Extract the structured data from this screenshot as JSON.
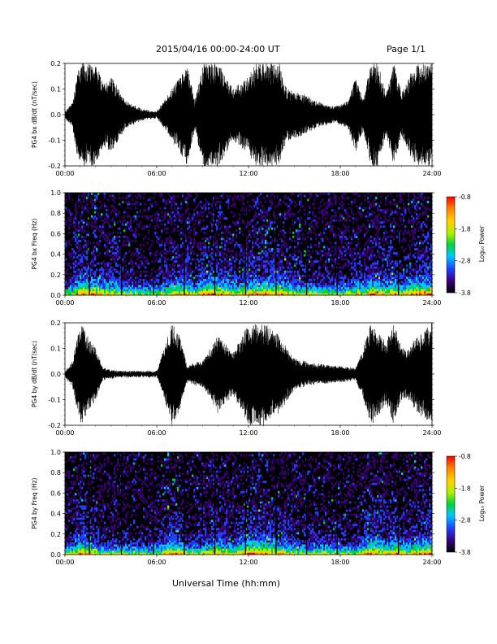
{
  "page": {
    "title": "2015/04/16  00:00-24:00 UT",
    "page_number": "Page 1/1",
    "xaxis_title": "Universal Time (hh:mm)"
  },
  "colors": {
    "trace": "#000000",
    "spectrogram_background": "#000000",
    "colorbar_stops": [
      "#000000",
      "#3a0078",
      "#2040ff",
      "#00c8ff",
      "#00d040",
      "#b0f000",
      "#ffd000",
      "#ff8000",
      "#ff0000"
    ]
  },
  "chart_data": [
    {
      "type": "line",
      "ylabel": "PG4 bx dB/dt (nT/sec)",
      "xlim": [
        0,
        24
      ],
      "ylim": [
        -0.2,
        0.2
      ],
      "x_ticks": [
        "00:00",
        "06:00",
        "12:00",
        "18:00",
        "24:00"
      ],
      "y_ticks": [
        "-0.2",
        "-0.1",
        "0.0",
        "0.1",
        "0.2"
      ],
      "envelope": [
        {
          "x": 0.0,
          "amp": 0.01
        },
        {
          "x": 0.5,
          "amp": 0.05
        },
        {
          "x": 0.75,
          "amp": 0.15
        },
        {
          "x": 1.0,
          "amp": 0.2
        },
        {
          "x": 2.0,
          "amp": 0.2
        },
        {
          "x": 2.5,
          "amp": 0.12
        },
        {
          "x": 3.0,
          "amp": 0.15
        },
        {
          "x": 4.0,
          "amp": 0.05
        },
        {
          "x": 5.0,
          "amp": 0.02
        },
        {
          "x": 6.0,
          "amp": 0.01
        },
        {
          "x": 7.0,
          "amp": 0.1
        },
        {
          "x": 8.0,
          "amp": 0.2
        },
        {
          "x": 8.5,
          "amp": 0.05
        },
        {
          "x": 9.0,
          "amp": 0.2
        },
        {
          "x": 10.0,
          "amp": 0.2
        },
        {
          "x": 11.0,
          "amp": 0.1
        },
        {
          "x": 12.0,
          "amp": 0.15
        },
        {
          "x": 12.5,
          "amp": 0.2
        },
        {
          "x": 14.0,
          "amp": 0.2
        },
        {
          "x": 14.5,
          "amp": 0.1
        },
        {
          "x": 15.5,
          "amp": 0.08
        },
        {
          "x": 16.5,
          "amp": 0.05
        },
        {
          "x": 17.5,
          "amp": 0.03
        },
        {
          "x": 18.5,
          "amp": 0.05
        },
        {
          "x": 19.0,
          "amp": 0.15
        },
        {
          "x": 19.5,
          "amp": 0.06
        },
        {
          "x": 20.0,
          "amp": 0.2
        },
        {
          "x": 20.5,
          "amp": 0.2
        },
        {
          "x": 21.0,
          "amp": 0.08
        },
        {
          "x": 21.5,
          "amp": 0.2
        },
        {
          "x": 22.0,
          "amp": 0.08
        },
        {
          "x": 22.5,
          "amp": 0.15
        },
        {
          "x": 23.0,
          "amp": 0.2
        },
        {
          "x": 24.0,
          "amp": 0.2
        }
      ]
    },
    {
      "type": "heatmap",
      "ylabel": "PG4 bx Freq (Hz)",
      "colorbar_label": "Log₁₀ Power",
      "colorbar_ticks": [
        "-0.8",
        "-1.8",
        "-2.8",
        "-3.8"
      ],
      "colorbar_range": [
        -3.8,
        -0.8
      ],
      "xlim": [
        0,
        24
      ],
      "ylim": [
        0.0,
        1.0
      ],
      "x_ticks": [
        "00:00",
        "06:00",
        "12:00",
        "18:00",
        "24:00"
      ],
      "y_ticks": [
        "0.0",
        "0.2",
        "0.4",
        "0.6",
        "0.8",
        "1.0"
      ],
      "data_gaps_hours": [
        1.6,
        3.7,
        5.8,
        7.8,
        9.8,
        11.8,
        13.8,
        15.8,
        17.8,
        21.8
      ]
    },
    {
      "type": "line",
      "ylabel": "PG4 by dB/dt (nT/sec)",
      "xlim": [
        0,
        24
      ],
      "ylim": [
        -0.2,
        0.2
      ],
      "x_ticks": [
        "00:00",
        "06:00",
        "12:00",
        "18:00",
        "24:00"
      ],
      "y_ticks": [
        "-0.2",
        "-0.1",
        "0.0",
        "0.1",
        "0.2"
      ],
      "envelope": [
        {
          "x": 0.0,
          "amp": 0.01
        },
        {
          "x": 0.5,
          "amp": 0.05
        },
        {
          "x": 1.0,
          "amp": 0.2
        },
        {
          "x": 2.0,
          "amp": 0.1
        },
        {
          "x": 2.5,
          "amp": 0.02
        },
        {
          "x": 3.5,
          "amp": 0.01
        },
        {
          "x": 5.0,
          "amp": 0.01
        },
        {
          "x": 6.0,
          "amp": 0.01
        },
        {
          "x": 6.5,
          "amp": 0.1
        },
        {
          "x": 7.0,
          "amp": 0.2
        },
        {
          "x": 7.5,
          "amp": 0.15
        },
        {
          "x": 8.0,
          "amp": 0.03
        },
        {
          "x": 9.0,
          "amp": 0.05
        },
        {
          "x": 10.0,
          "amp": 0.15
        },
        {
          "x": 11.0,
          "amp": 0.08
        },
        {
          "x": 12.0,
          "amp": 0.2
        },
        {
          "x": 13.0,
          "amp": 0.2
        },
        {
          "x": 14.0,
          "amp": 0.15
        },
        {
          "x": 15.0,
          "amp": 0.06
        },
        {
          "x": 16.0,
          "amp": 0.04
        },
        {
          "x": 18.0,
          "amp": 0.03
        },
        {
          "x": 19.0,
          "amp": 0.02
        },
        {
          "x": 19.5,
          "amp": 0.1
        },
        {
          "x": 20.0,
          "amp": 0.2
        },
        {
          "x": 21.0,
          "amp": 0.12
        },
        {
          "x": 21.5,
          "amp": 0.2
        },
        {
          "x": 22.0,
          "amp": 0.1
        },
        {
          "x": 22.5,
          "amp": 0.1
        },
        {
          "x": 23.0,
          "amp": 0.15
        },
        {
          "x": 24.0,
          "amp": 0.2
        }
      ]
    },
    {
      "type": "heatmap",
      "ylabel": "PG4 by Freq (Hz)",
      "colorbar_label": "Log₁₀ Power",
      "colorbar_ticks": [
        "-0.8",
        "-1.8",
        "-2.8",
        "-3.8"
      ],
      "colorbar_range": [
        -3.8,
        -0.8
      ],
      "xlim": [
        0,
        24
      ],
      "ylim": [
        0.0,
        1.0
      ],
      "x_ticks": [
        "00:00",
        "06:00",
        "12:00",
        "18:00",
        "24:00"
      ],
      "y_ticks": [
        "0.0",
        "0.2",
        "0.4",
        "0.6",
        "0.8",
        "1.0"
      ],
      "data_gaps_hours": [
        1.6,
        3.7,
        5.8,
        7.8,
        9.8,
        11.8,
        13.8,
        15.8,
        17.8,
        21.8
      ]
    }
  ]
}
